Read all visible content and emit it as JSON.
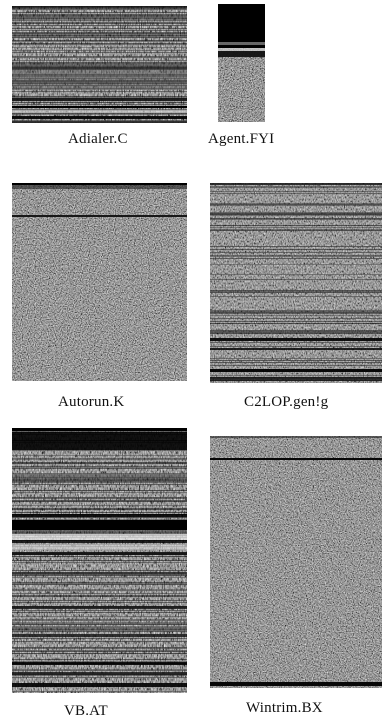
{
  "figure": {
    "panels": [
      {
        "id": "adialer",
        "caption": "Adialer.C"
      },
      {
        "id": "agent",
        "caption": "Agent.FYI"
      },
      {
        "id": "autorun",
        "caption": "Autorun.K"
      },
      {
        "id": "c2lop",
        "caption": "C2LOP.gen!g"
      },
      {
        "id": "vbat",
        "caption": "VB.AT"
      },
      {
        "id": "wintrim",
        "caption": "Wintrim.BX"
      }
    ]
  }
}
